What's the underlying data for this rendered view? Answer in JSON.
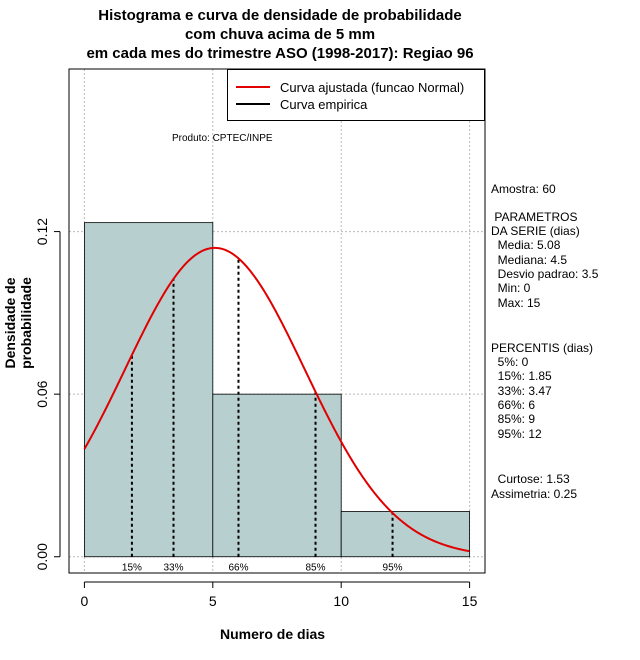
{
  "title_lines": [
    "Histograma e curva de densidade de probabilidade",
    "com chuva acima de 5 mm",
    "em cada mes do trimestre ASO (1998-2017): Regiao 96"
  ],
  "legend": [
    {
      "label": "Curva ajustada (funcao Normal)",
      "color": "#e00000"
    },
    {
      "label": "Curva empirica",
      "color": "#000000"
    }
  ],
  "product_note": "Produto: CPTEC/INPE",
  "stats": {
    "sample": "Amostra: 60",
    "params_header_1": " PARAMETROS",
    "params_header_2": "DA SERIE (dias)",
    "media": "  Media: 5.08",
    "mediana": "  Mediana: 4.5",
    "desvio": "  Desvio padrao: 3.5",
    "min": "  Min: 0",
    "max": "  Max: 15",
    "percentis_header": "PERCENTIS (dias)",
    "p5": "  5%: 0",
    "p15": "  15%: 1.85",
    "p33": "  33%: 3.47",
    "p66": "  66%: 6",
    "p85": "  85%: 9",
    "p95": "  95%: 12",
    "curtose": "  Curtose: 1.53",
    "assimetria": "Assimetria: 0.25"
  },
  "chart_data": {
    "type": "bar",
    "title": "Histograma e curva de densidade de probabilidade com chuva acima de 5 mm em cada mes do trimestre ASO (1998-2017): Regiao 96",
    "xlabel": "Numero de dias",
    "ylabel": "Densidade de probabilidade",
    "xlim": [
      -0.6,
      15.6
    ],
    "ylim": [
      -0.006,
      0.18
    ],
    "x_ticks": [
      0,
      5,
      10,
      15
    ],
    "x_tick_labels": [
      "0",
      "5",
      "10",
      "15"
    ],
    "y_ticks": [
      0.0,
      0.06,
      0.12
    ],
    "y_tick_labels": [
      "0.00",
      "0.06",
      "0.12"
    ],
    "grid": true,
    "bins": [
      {
        "from": 0,
        "to": 5,
        "density": 0.1233
      },
      {
        "from": 5,
        "to": 10,
        "density": 0.06
      },
      {
        "from": 10,
        "to": 15,
        "density": 0.0167
      }
    ],
    "bar_color": "#b8cfcf",
    "normal_curve": {
      "mean": 5.08,
      "sd": 3.5,
      "color": "#e00000"
    },
    "percentile_lines": [
      {
        "label": "15%",
        "x": 1.85
      },
      {
        "label": "33%",
        "x": 3.47
      },
      {
        "label": "66%",
        "x": 6
      },
      {
        "label": "85%",
        "x": 9
      },
      {
        "label": "95%",
        "x": 12
      }
    ],
    "legend_position": "top-right"
  }
}
